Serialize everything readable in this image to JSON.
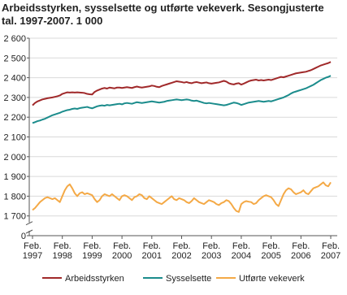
{
  "chart_data": {
    "type": "line",
    "title": "Arbeidsstyrken, sysselsette og utførte vekeverk. Sesongjusterte",
    "subtitle": "tal. 1997-2007. 1 000",
    "categories": [
      "Feb. 1997",
      null,
      null,
      null,
      null,
      null,
      null,
      null,
      null,
      null,
      null,
      null,
      "Feb. 1998",
      null,
      null,
      null,
      null,
      null,
      null,
      null,
      null,
      null,
      null,
      null,
      "Feb. 1999",
      null,
      null,
      null,
      null,
      null,
      null,
      null,
      null,
      null,
      null,
      null,
      "Feb. 2000",
      null,
      null,
      null,
      null,
      null,
      null,
      null,
      null,
      null,
      null,
      null,
      "Feb. 2001",
      null,
      null,
      null,
      null,
      null,
      null,
      null,
      null,
      null,
      null,
      null,
      "Feb. 2002",
      null,
      null,
      null,
      null,
      null,
      null,
      null,
      null,
      null,
      null,
      null,
      "Feb. 2003",
      null,
      null,
      null,
      null,
      null,
      null,
      null,
      null,
      null,
      null,
      null,
      "Feb. 2004",
      null,
      null,
      null,
      null,
      null,
      null,
      null,
      null,
      null,
      null,
      null,
      "Feb. 2005",
      null,
      null,
      null,
      null,
      null,
      null,
      null,
      null,
      null,
      null,
      null,
      "Feb. 2006",
      null,
      null,
      null,
      null,
      null,
      null,
      null,
      null,
      null,
      null,
      null,
      "Feb. 2007"
    ],
    "series": [
      {
        "name": "Arbeidsstyrken",
        "color": "#a0292a",
        "values": [
          2260,
          2272,
          2280,
          2285,
          2290,
          2293,
          2296,
          2298,
          2300,
          2303,
          2306,
          2310,
          2318,
          2322,
          2326,
          2325,
          2326,
          2325,
          2326,
          2325,
          2324,
          2322,
          2318,
          2316,
          2315,
          2328,
          2335,
          2340,
          2345,
          2348,
          2345,
          2350,
          2348,
          2346,
          2350,
          2350,
          2348,
          2350,
          2352,
          2350,
          2348,
          2352,
          2355,
          2352,
          2350,
          2352,
          2354,
          2356,
          2360,
          2358,
          2354,
          2352,
          2358,
          2362,
          2366,
          2370,
          2374,
          2378,
          2382,
          2380,
          2378,
          2375,
          2378,
          2374,
          2372,
          2376,
          2378,
          2375,
          2372,
          2374,
          2376,
          2372,
          2370,
          2372,
          2374,
          2376,
          2380,
          2384,
          2380,
          2372,
          2368,
          2366,
          2370,
          2372,
          2365,
          2370,
          2376,
          2382,
          2386,
          2388,
          2390,
          2386,
          2388,
          2386,
          2388,
          2390,
          2388,
          2392,
          2396,
          2400,
          2404,
          2402,
          2406,
          2410,
          2414,
          2418,
          2422,
          2424,
          2426,
          2428,
          2430,
          2434,
          2438,
          2444,
          2450,
          2456,
          2462,
          2466,
          2470,
          2474,
          2480
        ]
      },
      {
        "name": "Sysselsette",
        "color": "#1b8c8c",
        "values": [
          2170,
          2175,
          2180,
          2183,
          2188,
          2192,
          2198,
          2204,
          2210,
          2214,
          2218,
          2222,
          2228,
          2232,
          2236,
          2238,
          2242,
          2244,
          2242,
          2246,
          2248,
          2250,
          2252,
          2248,
          2245,
          2250,
          2255,
          2258,
          2260,
          2258,
          2262,
          2260,
          2262,
          2264,
          2266,
          2268,
          2265,
          2270,
          2272,
          2270,
          2268,
          2272,
          2276,
          2274,
          2272,
          2274,
          2276,
          2278,
          2280,
          2278,
          2276,
          2274,
          2276,
          2278,
          2282,
          2284,
          2286,
          2288,
          2290,
          2288,
          2286,
          2288,
          2290,
          2288,
          2284,
          2282,
          2284,
          2280,
          2276,
          2272,
          2270,
          2272,
          2270,
          2268,
          2266,
          2264,
          2262,
          2260,
          2262,
          2266,
          2270,
          2274,
          2272,
          2268,
          2262,
          2266,
          2270,
          2274,
          2276,
          2278,
          2280,
          2282,
          2280,
          2278,
          2280,
          2282,
          2280,
          2284,
          2288,
          2292,
          2296,
          2300,
          2306,
          2312,
          2320,
          2326,
          2330,
          2334,
          2338,
          2342,
          2346,
          2352,
          2358,
          2364,
          2372,
          2380,
          2388,
          2394,
          2400,
          2404,
          2410
        ]
      },
      {
        "name": "Utførte vekeverk",
        "color": "#f4a946",
        "values": [
          1730,
          1740,
          1755,
          1770,
          1780,
          1790,
          1795,
          1790,
          1785,
          1790,
          1780,
          1770,
          1800,
          1830,
          1850,
          1860,
          1840,
          1815,
          1800,
          1815,
          1820,
          1810,
          1815,
          1810,
          1805,
          1785,
          1770,
          1780,
          1800,
          1810,
          1805,
          1800,
          1810,
          1800,
          1790,
          1780,
          1800,
          1805,
          1800,
          1790,
          1780,
          1795,
          1800,
          1810,
          1805,
          1790,
          1785,
          1800,
          1790,
          1780,
          1770,
          1765,
          1760,
          1770,
          1780,
          1790,
          1800,
          1785,
          1780,
          1790,
          1785,
          1780,
          1770,
          1765,
          1775,
          1790,
          1780,
          1770,
          1765,
          1760,
          1770,
          1780,
          1775,
          1770,
          1760,
          1755,
          1765,
          1770,
          1780,
          1775,
          1760,
          1740,
          1725,
          1720,
          1760,
          1770,
          1775,
          1772,
          1770,
          1760,
          1765,
          1780,
          1790,
          1800,
          1805,
          1800,
          1795,
          1780,
          1760,
          1750,
          1780,
          1810,
          1830,
          1840,
          1835,
          1820,
          1810,
          1815,
          1820,
          1830,
          1815,
          1810,
          1825,
          1840,
          1845,
          1850,
          1860,
          1870,
          1855,
          1850,
          1870
        ]
      }
    ],
    "ylim": [
      0,
      2600
    ],
    "yticks": [
      0,
      {
        "value": 1700,
        "label": "1 700"
      },
      {
        "value": 1800,
        "label": "1 800"
      },
      {
        "value": 1900,
        "label": "1 900"
      },
      {
        "value": 2000,
        "label": "2 000"
      },
      {
        "value": 2100,
        "label": "2 100"
      },
      {
        "value": 2200,
        "label": "2 200"
      },
      {
        "value": 2300,
        "label": "2 300"
      },
      {
        "value": 2400,
        "label": "2 400"
      },
      {
        "value": 2500,
        "label": "2 500"
      },
      {
        "value": 2600,
        "label": "2 600"
      }
    ],
    "axis_break": true,
    "grid": true,
    "legend": "bottom"
  }
}
